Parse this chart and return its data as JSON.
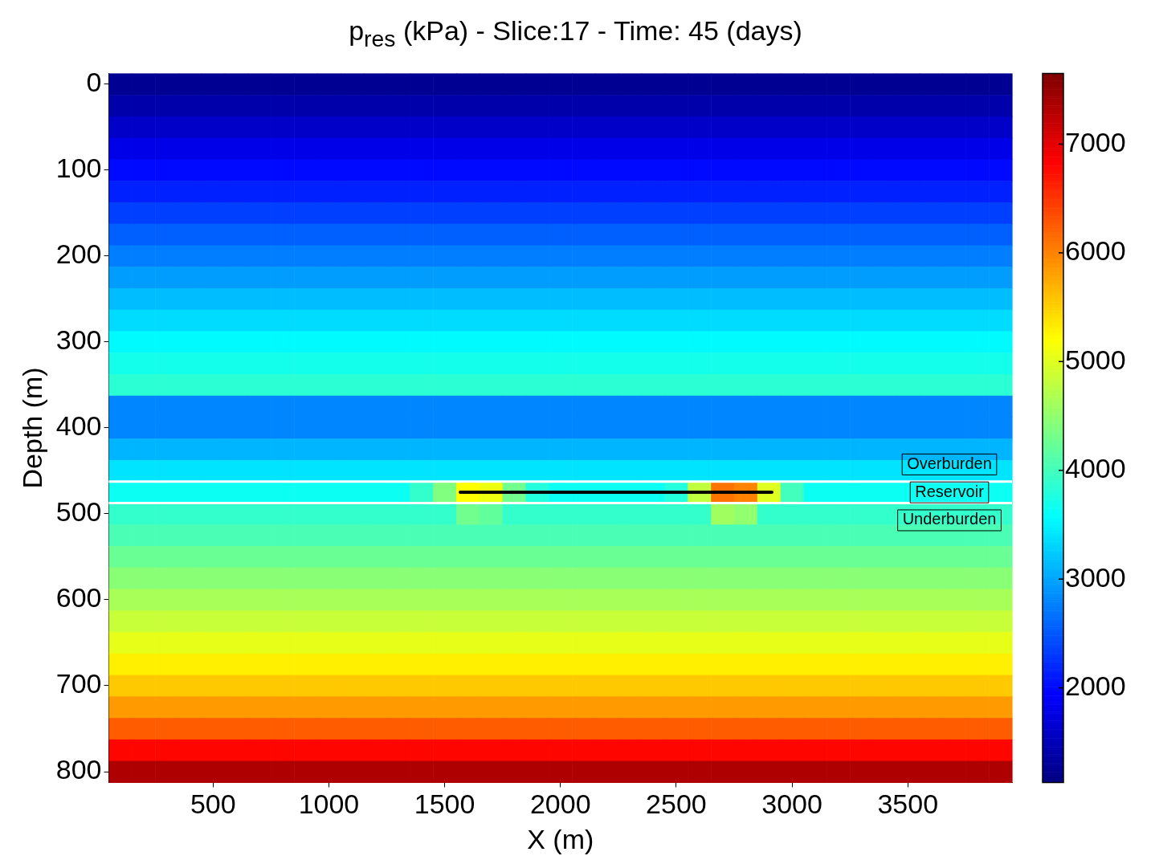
{
  "chart_data": {
    "type": "heatmap",
    "title": "p$_{res}$  (kPa) - Slice:17 - Time: 45 (days)",
    "xlabel": "X (m)",
    "ylabel": "Depth (m)",
    "categories": [
      null,
      null,
      null,
      null,
      "500",
      null,
      null,
      null,
      null,
      "1000",
      null,
      null,
      null,
      null,
      "1500",
      null,
      null,
      null,
      null,
      "2000",
      null,
      null,
      null,
      null,
      "2500",
      null,
      null,
      null,
      null,
      "3000",
      null,
      null,
      null,
      null,
      "3500",
      null,
      null,
      null,
      null
    ],
    "y_categories": [
      "0",
      null,
      null,
      null,
      "100",
      null,
      null,
      null,
      "200",
      null,
      null,
      null,
      "300",
      null,
      null,
      null,
      "400",
      null,
      null,
      null,
      "500",
      null,
      null,
      null,
      "600",
      null,
      null,
      null,
      "700",
      null,
      null,
      null,
      "800"
    ],
    "clim": [
      1130,
      7650
    ],
    "cticks": [
      2000,
      3000,
      4000,
      5000,
      6000,
      7000
    ],
    "cells": [
      [
        1250,
        1250,
        1250,
        1250,
        1250,
        1250,
        1250,
        1250,
        1250,
        1250,
        1250,
        1250,
        1250,
        1250,
        1250,
        1250,
        1250,
        1250,
        1250,
        1250,
        1250,
        1250,
        1250,
        1250,
        1250,
        1250,
        1250,
        1250,
        1250,
        1250,
        1250,
        1250,
        1250,
        1250,
        1250,
        1250,
        1250,
        1250,
        1250
      ],
      [
        1400,
        1400,
        1400,
        1400,
        1400,
        1400,
        1400,
        1400,
        1400,
        1400,
        1400,
        1400,
        1400,
        1400,
        1400,
        1400,
        1400,
        1400,
        1400,
        1400,
        1400,
        1400,
        1400,
        1400,
        1400,
        1400,
        1400,
        1400,
        1400,
        1400,
        1400,
        1400,
        1400,
        1400,
        1400,
        1400,
        1400,
        1400,
        1400
      ],
      [
        1600,
        1600,
        1600,
        1600,
        1600,
        1600,
        1600,
        1600,
        1600,
        1600,
        1600,
        1600,
        1600,
        1600,
        1600,
        1600,
        1600,
        1600,
        1600,
        1600,
        1600,
        1600,
        1600,
        1600,
        1600,
        1600,
        1600,
        1600,
        1600,
        1600,
        1600,
        1600,
        1600,
        1600,
        1600,
        1600,
        1600,
        1600,
        1600
      ],
      [
        1800,
        1800,
        1800,
        1800,
        1800,
        1800,
        1800,
        1800,
        1800,
        1800,
        1800,
        1800,
        1800,
        1800,
        1800,
        1800,
        1800,
        1800,
        1800,
        1800,
        1800,
        1800,
        1800,
        1800,
        1800,
        1800,
        1800,
        1800,
        1800,
        1800,
        1800,
        1800,
        1800,
        1800,
        1800,
        1800,
        1800,
        1800,
        1800
      ],
      [
        2000,
        2000,
        2000,
        2000,
        2000,
        2000,
        2000,
        2000,
        2000,
        2000,
        2000,
        2000,
        2000,
        2000,
        2000,
        2000,
        2000,
        2000,
        2000,
        2000,
        2000,
        2000,
        2000,
        2000,
        2000,
        2000,
        2000,
        2000,
        2000,
        2000,
        2000,
        2000,
        2000,
        2000,
        2000,
        2000,
        2000,
        2000,
        2000
      ],
      [
        2150,
        2150,
        2150,
        2150,
        2150,
        2150,
        2150,
        2150,
        2150,
        2150,
        2150,
        2150,
        2150,
        2150,
        2150,
        2150,
        2150,
        2150,
        2150,
        2150,
        2150,
        2150,
        2150,
        2150,
        2150,
        2150,
        2150,
        2150,
        2150,
        2150,
        2150,
        2150,
        2150,
        2150,
        2150,
        2150,
        2150,
        2150,
        2150
      ],
      [
        2350,
        2350,
        2350,
        2350,
        2350,
        2350,
        2350,
        2350,
        2350,
        2350,
        2350,
        2350,
        2350,
        2350,
        2350,
        2350,
        2350,
        2350,
        2350,
        2350,
        2350,
        2350,
        2350,
        2350,
        2350,
        2350,
        2350,
        2350,
        2350,
        2350,
        2350,
        2350,
        2350,
        2350,
        2350,
        2350,
        2350,
        2350,
        2350
      ],
      [
        2550,
        2550,
        2550,
        2550,
        2550,
        2550,
        2550,
        2550,
        2550,
        2550,
        2550,
        2550,
        2550,
        2550,
        2550,
        2550,
        2550,
        2550,
        2550,
        2550,
        2550,
        2550,
        2550,
        2550,
        2550,
        2550,
        2550,
        2550,
        2550,
        2550,
        2550,
        2550,
        2550,
        2550,
        2550,
        2550,
        2550,
        2550,
        2550
      ],
      [
        2750,
        2750,
        2750,
        2750,
        2750,
        2750,
        2750,
        2750,
        2750,
        2750,
        2750,
        2750,
        2750,
        2750,
        2750,
        2750,
        2750,
        2750,
        2750,
        2750,
        2750,
        2750,
        2750,
        2750,
        2750,
        2750,
        2750,
        2750,
        2750,
        2750,
        2750,
        2750,
        2750,
        2750,
        2750,
        2750,
        2750,
        2750,
        2750
      ],
      [
        2950,
        2950,
        2950,
        2950,
        2950,
        2950,
        2950,
        2950,
        2950,
        2950,
        2950,
        2950,
        2950,
        2950,
        2950,
        2950,
        2950,
        2950,
        2950,
        2950,
        2950,
        2950,
        2950,
        2950,
        2950,
        2950,
        2950,
        2950,
        2950,
        2950,
        2950,
        2950,
        2950,
        2950,
        2950,
        2950,
        2950,
        2950,
        2950
      ],
      [
        3150,
        3150,
        3150,
        3150,
        3150,
        3150,
        3150,
        3150,
        3150,
        3150,
        3150,
        3150,
        3150,
        3150,
        3150,
        3150,
        3150,
        3150,
        3150,
        3150,
        3150,
        3150,
        3150,
        3150,
        3150,
        3150,
        3150,
        3150,
        3150,
        3150,
        3150,
        3150,
        3150,
        3150,
        3150,
        3150,
        3150,
        3150,
        3150
      ],
      [
        3350,
        3350,
        3350,
        3350,
        3350,
        3350,
        3350,
        3350,
        3350,
        3350,
        3350,
        3350,
        3350,
        3350,
        3350,
        3350,
        3350,
        3350,
        3350,
        3350,
        3350,
        3350,
        3350,
        3350,
        3350,
        3350,
        3350,
        3350,
        3350,
        3350,
        3350,
        3350,
        3350,
        3350,
        3350,
        3350,
        3350,
        3350,
        3350
      ],
      [
        3550,
        3550,
        3550,
        3550,
        3550,
        3550,
        3550,
        3550,
        3550,
        3550,
        3550,
        3550,
        3550,
        3550,
        3550,
        3550,
        3550,
        3550,
        3550,
        3550,
        3550,
        3550,
        3550,
        3550,
        3550,
        3550,
        3550,
        3550,
        3550,
        3550,
        3550,
        3550,
        3550,
        3550,
        3550,
        3550,
        3550,
        3550,
        3550
      ],
      [
        3700,
        3700,
        3700,
        3700,
        3700,
        3700,
        3700,
        3700,
        3700,
        3700,
        3700,
        3700,
        3700,
        3700,
        3700,
        3700,
        3700,
        3700,
        3700,
        3700,
        3700,
        3700,
        3700,
        3700,
        3700,
        3700,
        3700,
        3700,
        3700,
        3700,
        3700,
        3700,
        3700,
        3700,
        3700,
        3700,
        3700,
        3700,
        3700
      ],
      [
        3850,
        3850,
        3850,
        3850,
        3850,
        3850,
        3850,
        3850,
        3850,
        3850,
        3850,
        3850,
        3850,
        3850,
        3850,
        3850,
        3850,
        3850,
        3850,
        3850,
        3850,
        3850,
        3850,
        3850,
        3850,
        3850,
        3850,
        3850,
        3850,
        3850,
        3850,
        3850,
        3850,
        3850,
        3850,
        3850,
        3850,
        3850,
        3850
      ],
      [
        2800,
        2800,
        2800,
        2800,
        2800,
        2800,
        2800,
        2800,
        2800,
        2800,
        2800,
        2800,
        2800,
        2800,
        2800,
        2800,
        2800,
        2800,
        2800,
        2800,
        2800,
        2800,
        2800,
        2800,
        2800,
        2800,
        2800,
        2800,
        2800,
        2800,
        2800,
        2800,
        2800,
        2800,
        2800,
        2800,
        2800,
        2800,
        2800
      ],
      [
        2800,
        2800,
        2800,
        2800,
        2800,
        2800,
        2800,
        2800,
        2800,
        2800,
        2800,
        2800,
        2800,
        2800,
        2800,
        2800,
        2800,
        2800,
        2800,
        2800,
        2800,
        2800,
        2800,
        2800,
        2800,
        2800,
        2800,
        2800,
        2800,
        2800,
        2800,
        2800,
        2800,
        2800,
        2800,
        2800,
        2800,
        2800,
        2800
      ],
      [
        3100,
        3100,
        3100,
        3100,
        3100,
        3100,
        3100,
        3100,
        3100,
        3100,
        3100,
        3100,
        3100,
        3100,
        3100,
        3100,
        3100,
        3100,
        3100,
        3100,
        3100,
        3100,
        3100,
        3100,
        3100,
        3100,
        3100,
        3100,
        3100,
        3100,
        3100,
        3100,
        3100,
        3100,
        3100,
        3100,
        3100,
        3100,
        3100
      ],
      [
        3400,
        3400,
        3400,
        3400,
        3400,
        3400,
        3400,
        3400,
        3400,
        3400,
        3400,
        3400,
        3400,
        3400,
        3400,
        3400,
        3400,
        3400,
        3400,
        3400,
        3400,
        3400,
        3400,
        3400,
        3400,
        3400,
        3400,
        3400,
        3400,
        3400,
        3400,
        3400,
        3400,
        3400,
        3400,
        3400,
        3400,
        3400,
        3400
      ],
      [
        3650,
        3650,
        3650,
        3650,
        3650,
        3650,
        3650,
        3650,
        3650,
        3650,
        3650,
        3650,
        3650,
        3900,
        4400,
        5200,
        5100,
        4300,
        3800,
        3650,
        3650,
        3650,
        3650,
        3650,
        3800,
        4800,
        6100,
        6000,
        5000,
        4000,
        3650,
        3650,
        3650,
        3650,
        3650,
        3650,
        3650,
        3650,
        3650
      ],
      [
        3900,
        3900,
        3900,
        3900,
        3900,
        3900,
        3900,
        3900,
        3900,
        3900,
        3900,
        3900,
        3900,
        3900,
        3900,
        4300,
        4200,
        3900,
        3900,
        3900,
        3900,
        3900,
        3900,
        3900,
        3900,
        3900,
        4600,
        4500,
        3900,
        3900,
        3900,
        3900,
        3900,
        3900,
        3900,
        3900,
        3900,
        3900,
        3900
      ],
      [
        4050,
        4050,
        4050,
        4050,
        4050,
        4050,
        4050,
        4050,
        4050,
        4050,
        4050,
        4050,
        4050,
        4050,
        4050,
        4050,
        4050,
        4050,
        4050,
        4050,
        4050,
        4050,
        4050,
        4050,
        4050,
        4050,
        4050,
        4050,
        4050,
        4050,
        4050,
        4050,
        4050,
        4050,
        4050,
        4050,
        4050,
        4050,
        4050
      ],
      [
        4250,
        4250,
        4250,
        4250,
        4250,
        4250,
        4250,
        4250,
        4250,
        4250,
        4250,
        4250,
        4250,
        4250,
        4250,
        4250,
        4250,
        4250,
        4250,
        4250,
        4250,
        4250,
        4250,
        4250,
        4250,
        4250,
        4250,
        4250,
        4250,
        4250,
        4250,
        4250,
        4250,
        4250,
        4250,
        4250,
        4250,
        4250,
        4250
      ],
      [
        4450,
        4450,
        4450,
        4450,
        4450,
        4450,
        4450,
        4450,
        4450,
        4450,
        4450,
        4450,
        4450,
        4450,
        4450,
        4450,
        4450,
        4450,
        4450,
        4450,
        4450,
        4450,
        4450,
        4450,
        4450,
        4450,
        4450,
        4450,
        4450,
        4450,
        4450,
        4450,
        4450,
        4450,
        4450,
        4450,
        4450,
        4450,
        4450
      ],
      [
        4650,
        4650,
        4650,
        4650,
        4650,
        4650,
        4650,
        4650,
        4650,
        4650,
        4650,
        4650,
        4650,
        4650,
        4650,
        4650,
        4650,
        4650,
        4650,
        4650,
        4650,
        4650,
        4650,
        4650,
        4650,
        4650,
        4650,
        4650,
        4650,
        4650,
        4650,
        4650,
        4650,
        4650,
        4650,
        4650,
        4650,
        4650,
        4650
      ],
      [
        4850,
        4850,
        4850,
        4850,
        4850,
        4850,
        4850,
        4850,
        4850,
        4850,
        4850,
        4850,
        4850,
        4850,
        4850,
        4850,
        4850,
        4850,
        4850,
        4850,
        4850,
        4850,
        4850,
        4850,
        4850,
        4850,
        4850,
        4850,
        4850,
        4850,
        4850,
        4850,
        4850,
        4850,
        4850,
        4850,
        4850,
        4850,
        4850
      ],
      [
        5050,
        5050,
        5050,
        5050,
        5050,
        5050,
        5050,
        5050,
        5050,
        5050,
        5050,
        5050,
        5050,
        5050,
        5050,
        5050,
        5050,
        5050,
        5050,
        5050,
        5050,
        5050,
        5050,
        5050,
        5050,
        5050,
        5050,
        5050,
        5050,
        5050,
        5050,
        5050,
        5050,
        5050,
        5050,
        5050,
        5050,
        5050,
        5050
      ],
      [
        5300,
        5300,
        5300,
        5300,
        5300,
        5300,
        5300,
        5300,
        5300,
        5300,
        5300,
        5300,
        5300,
        5300,
        5300,
        5300,
        5300,
        5300,
        5300,
        5300,
        5300,
        5300,
        5300,
        5300,
        5300,
        5300,
        5300,
        5300,
        5300,
        5300,
        5300,
        5300,
        5300,
        5300,
        5300,
        5300,
        5300,
        5300,
        5300
      ],
      [
        5550,
        5550,
        5550,
        5550,
        5550,
        5550,
        5550,
        5550,
        5550,
        5550,
        5550,
        5550,
        5550,
        5550,
        5550,
        5550,
        5550,
        5550,
        5550,
        5550,
        5550,
        5550,
        5550,
        5550,
        5550,
        5550,
        5550,
        5550,
        5550,
        5550,
        5550,
        5550,
        5550,
        5550,
        5550,
        5550,
        5550,
        5550,
        5550
      ],
      [
        5850,
        5850,
        5850,
        5850,
        5850,
        5850,
        5850,
        5850,
        5850,
        5850,
        5850,
        5850,
        5850,
        5850,
        5850,
        5850,
        5850,
        5850,
        5850,
        5850,
        5850,
        5850,
        5850,
        5850,
        5850,
        5850,
        5850,
        5850,
        5850,
        5850,
        5850,
        5850,
        5850,
        5850,
        5850,
        5850,
        5850,
        5850,
        5850
      ],
      [
        6250,
        6250,
        6250,
        6250,
        6250,
        6250,
        6250,
        6250,
        6250,
        6250,
        6250,
        6250,
        6250,
        6250,
        6250,
        6250,
        6250,
        6250,
        6250,
        6250,
        6250,
        6250,
        6250,
        6250,
        6250,
        6250,
        6250,
        6250,
        6250,
        6250,
        6250,
        6250,
        6250,
        6250,
        6250,
        6250,
        6250,
        6250,
        6250
      ],
      [
        6800,
        6800,
        6800,
        6800,
        6800,
        6800,
        6800,
        6800,
        6800,
        6800,
        6800,
        6800,
        6800,
        6800,
        6800,
        6800,
        6800,
        6800,
        6800,
        6800,
        6800,
        6800,
        6800,
        6800,
        6800,
        6800,
        6800,
        6800,
        6800,
        6800,
        6800,
        6800,
        6800,
        6800,
        6800,
        6800,
        6800,
        6800,
        6800
      ],
      [
        7350,
        7350,
        7350,
        7350,
        7350,
        7350,
        7350,
        7350,
        7350,
        7350,
        7350,
        7350,
        7350,
        7350,
        7350,
        7350,
        7350,
        7350,
        7350,
        7350,
        7350,
        7350,
        7350,
        7350,
        7350,
        7350,
        7350,
        7350,
        7350,
        7350,
        7350,
        7350,
        7350,
        7350,
        7350,
        7350,
        7350,
        7350,
        7350
      ]
    ],
    "annotations": [
      "Overburden",
      "Reservoir",
      "Underburden"
    ]
  }
}
